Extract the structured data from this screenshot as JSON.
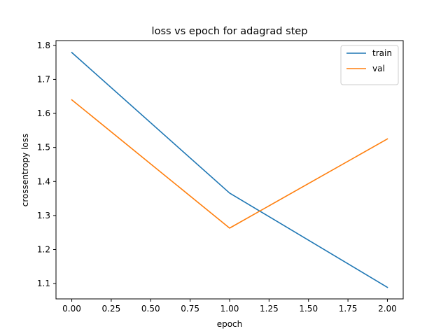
{
  "chart_data": {
    "type": "line",
    "title": "loss vs epoch for adagrad step",
    "xlabel": "epoch",
    "ylabel": "crossentropy loss",
    "x": [
      0,
      1,
      2
    ],
    "series": [
      {
        "name": "train",
        "color": "#1f77b4",
        "values": [
          1.779,
          1.366,
          1.089
        ]
      },
      {
        "name": "val",
        "color": "#ff7f0e",
        "values": [
          1.64,
          1.263,
          1.525
        ]
      }
    ],
    "xlim": [
      -0.1,
      2.1
    ],
    "ylim": [
      1.055,
      1.814
    ],
    "xticks": [
      0.0,
      0.25,
      0.5,
      0.75,
      1.0,
      1.25,
      1.5,
      1.75,
      2.0
    ],
    "xtick_labels": [
      "0.00",
      "0.25",
      "0.50",
      "0.75",
      "1.00",
      "1.25",
      "1.50",
      "1.75",
      "2.00"
    ],
    "yticks": [
      1.1,
      1.2,
      1.3,
      1.4,
      1.5,
      1.6,
      1.7,
      1.8
    ],
    "ytick_labels": [
      "1.1",
      "1.2",
      "1.3",
      "1.4",
      "1.5",
      "1.6",
      "1.7",
      "1.8"
    ],
    "legend_position": "top-right",
    "grid": false
  }
}
